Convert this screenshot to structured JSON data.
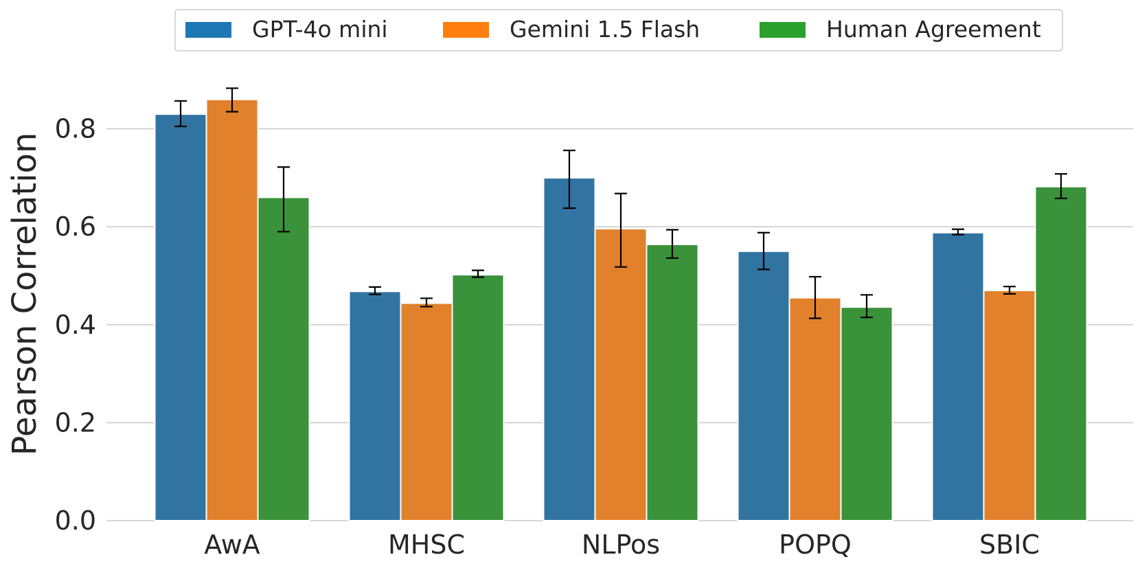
{
  "chart_data": {
    "type": "bar",
    "title": "",
    "xlabel": "",
    "ylabel": "Pearson Correlation",
    "categories": [
      "AwA",
      "MHSC",
      "NLPos",
      "POPQ",
      "SBIC"
    ],
    "ylim": [
      0,
      0.9
    ],
    "yticks": [
      0.0,
      0.2,
      0.4,
      0.6,
      0.8
    ],
    "ytick_labels": [
      "0.0",
      "0.2",
      "0.4",
      "0.6",
      "0.8"
    ],
    "grid": "y",
    "legend_position": "top-center",
    "series": [
      {
        "name": "GPT-4o mini",
        "color": "#3274a1",
        "values": [
          0.83,
          0.468,
          0.7,
          0.55,
          0.588
        ],
        "err_low": [
          0.805,
          0.462,
          0.638,
          0.513,
          0.584
        ],
        "err_high": [
          0.857,
          0.477,
          0.756,
          0.588,
          0.595
        ]
      },
      {
        "name": "Gemini 1.5 Flash",
        "color": "#e1812c",
        "values": [
          0.86,
          0.444,
          0.596,
          0.455,
          0.47
        ],
        "err_low": [
          0.835,
          0.437,
          0.518,
          0.413,
          0.463
        ],
        "err_high": [
          0.883,
          0.454,
          0.668,
          0.498,
          0.478
        ]
      },
      {
        "name": "Human Agreement",
        "color": "#3a923a",
        "values": [
          0.66,
          0.502,
          0.564,
          0.436,
          0.682
        ],
        "err_low": [
          0.59,
          0.497,
          0.536,
          0.415,
          0.658
        ],
        "err_high": [
          0.722,
          0.511,
          0.594,
          0.461,
          0.708
        ]
      }
    ],
    "legend_swatch_colors": [
      "#1f77b4",
      "#ff7f0e",
      "#2ca02c"
    ]
  }
}
